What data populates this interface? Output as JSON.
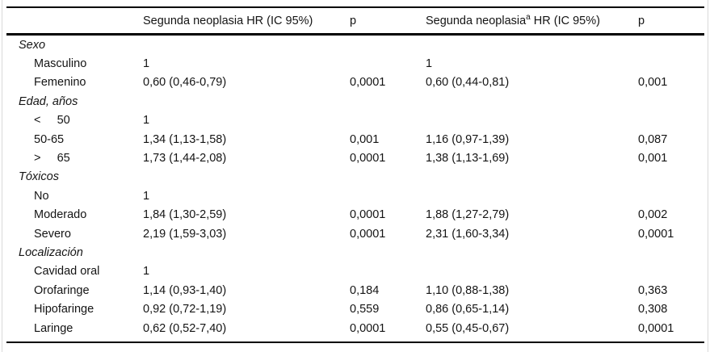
{
  "table": {
    "columns": {
      "col1_label": "Segunda neoplasia HR (IC 95%)",
      "p1_label": "p",
      "col2_prefix": "Segunda neoplasia",
      "col2_sup": "a",
      "col2_suffix": " HR (IC 95%)",
      "p2_label": "p"
    },
    "rows": [
      {
        "type": "section",
        "label": "Sexo"
      },
      {
        "type": "item",
        "label": "Masculino",
        "hr1": "1",
        "p1": "",
        "hr2": "1",
        "p2": ""
      },
      {
        "type": "item",
        "label": "Femenino",
        "hr1": "0,60 (0,46-0,79)",
        "p1": "0,0001",
        "hr2": "0,60 (0,44-0,81)",
        "p2": "0,001"
      },
      {
        "type": "section",
        "label": "Edad, años"
      },
      {
        "type": "item",
        "label": "<     50",
        "hr1": "1",
        "p1": "",
        "hr2": "",
        "p2": ""
      },
      {
        "type": "item",
        "label": "50-65",
        "hr1": "1,34 (1,13-1,58)",
        "p1": "0,001",
        "hr2": "1,16 (0,97-1,39)",
        "p2": "0,087"
      },
      {
        "type": "item",
        "label": ">     65",
        "hr1": "1,73 (1,44-2,08)",
        "p1": "0,0001",
        "hr2": "1,38 (1,13-1,69)",
        "p2": "0,001"
      },
      {
        "type": "section",
        "label": "Tóxicos"
      },
      {
        "type": "item",
        "label": "No",
        "hr1": "1",
        "p1": "",
        "hr2": "",
        "p2": ""
      },
      {
        "type": "item",
        "label": "Moderado",
        "hr1": "1,84 (1,30-2,59)",
        "p1": "0,0001",
        "hr2": "1,88 (1,27-2,79)",
        "p2": "0,002"
      },
      {
        "type": "item",
        "label": "Severo",
        "hr1": "2,19 (1,59-3,03)",
        "p1": "0,0001",
        "hr2": "2,31 (1,60-3,34)",
        "p2": "0,0001"
      },
      {
        "type": "section",
        "label": "Localización"
      },
      {
        "type": "item",
        "label": "Cavidad oral",
        "hr1": "1",
        "p1": "",
        "hr2": "",
        "p2": ""
      },
      {
        "type": "item",
        "label": "Orofaringe",
        "hr1": "1,14 (0,93-1,40)",
        "p1": "0,184",
        "hr2": "1,10 (0,88-1,38)",
        "p2": "0,363"
      },
      {
        "type": "item",
        "label": "Hipofaringe",
        "hr1": "0,92 (0,72-1,19)",
        "p1": "0,559",
        "hr2": "0,86 (0,65-1,14)",
        "p2": "0,308"
      },
      {
        "type": "item",
        "label": "Laringe",
        "hr1": "0,62 (0,52-7,40)",
        "p1": "0,0001",
        "hr2": "0,55 (0,45-0,67)",
        "p2": "0,0001"
      }
    ]
  },
  "colors": {
    "rule": "#000000",
    "frame_edge": "#d9d9d9",
    "text": "#141414",
    "background": "#ffffff"
  }
}
